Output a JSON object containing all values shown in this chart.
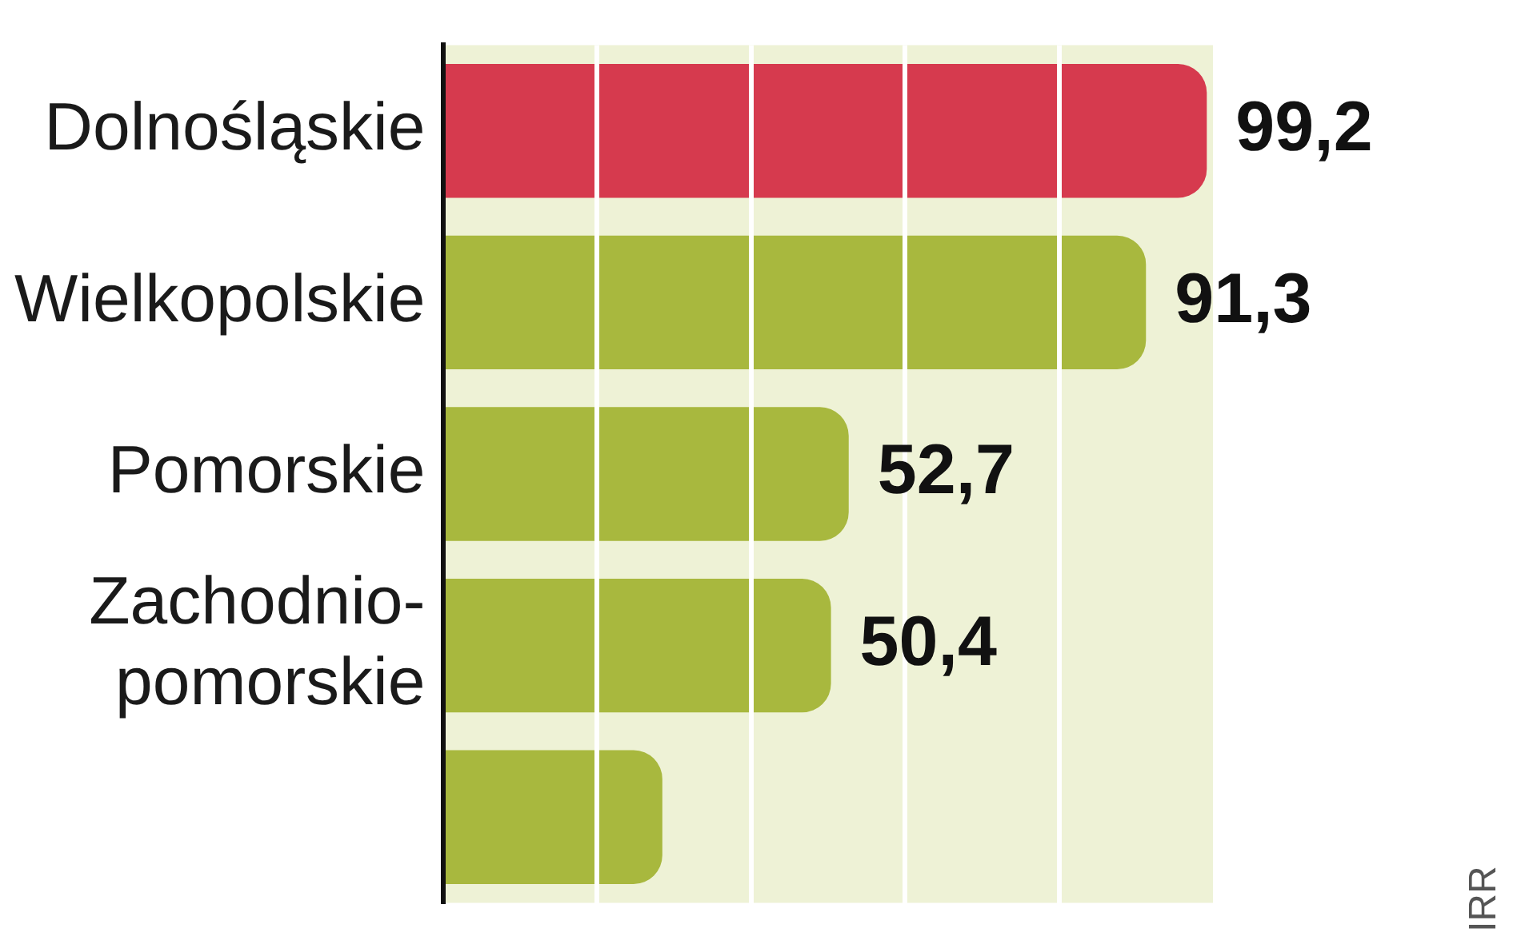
{
  "chart_data": {
    "type": "bar",
    "orientation": "horizontal",
    "categories": [
      "Dolnośląskie",
      "Wielkopolskie",
      "Pomorskie",
      "Zachodnio-pomorskie",
      null
    ],
    "values": [
      99.2,
      91.3,
      52.7,
      50.4,
      28.5
    ],
    "colors": [
      "#d63a4e",
      "#a8b83e",
      "#a8b83e",
      "#a8b83e",
      "#a8b83e"
    ],
    "value_labels": [
      "99,2",
      "91,3",
      "52,7",
      "50,4",
      null
    ],
    "xlim": [
      0,
      100
    ],
    "xticks": [
      {
        "value": 20,
        "label": null
      },
      {
        "value": 40,
        "label": null
      },
      {
        "value": 60,
        "label": null
      },
      {
        "value": 80,
        "label": null
      }
    ],
    "grid": "x",
    "tick_labels": "y",
    "annotations": [
      "IRR"
    ]
  }
}
